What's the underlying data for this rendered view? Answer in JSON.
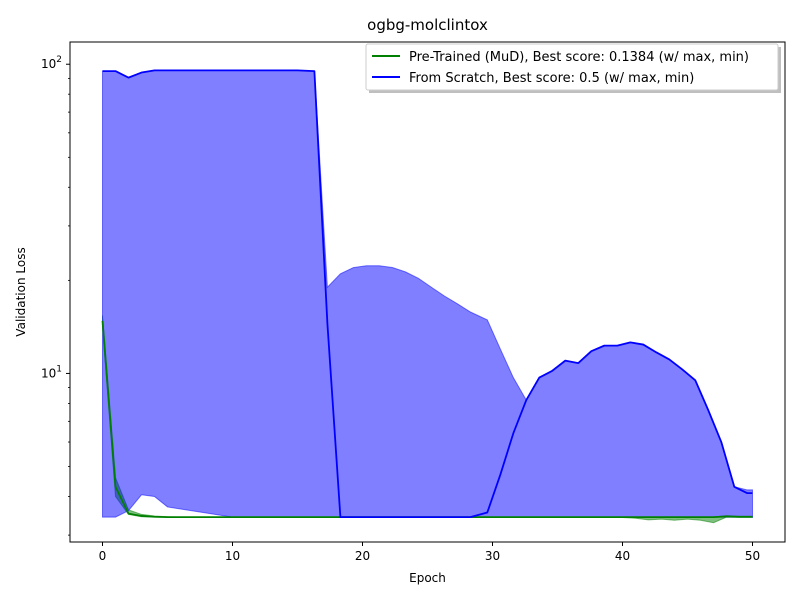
{
  "chart_data": {
    "type": "line",
    "title": "ogbg-molclintox",
    "xlabel": "Epoch",
    "ylabel": "Validation Loss",
    "yscale": "log",
    "xlim": [
      -2.5,
      52.5
    ],
    "ylim": [
      2.85,
      118
    ],
    "x_ticks": [
      0,
      10,
      20,
      30,
      40,
      50
    ],
    "x_tick_labels": [
      "0",
      "10",
      "20",
      "30",
      "40",
      "50"
    ],
    "y_major_ticks": [
      10,
      100
    ],
    "y_major_tick_labels": [
      "10^1",
      "10^2"
    ],
    "y_minor_ticks": [
      3,
      4,
      5,
      6,
      7,
      8,
      9,
      20,
      30,
      40,
      50,
      60,
      70,
      80,
      90
    ],
    "grid": false,
    "legend_position": "top-right",
    "series": [
      {
        "name": "Pre-Trained (MuD), Best score: 0.1384 (w/ max, min)",
        "color": "#008000",
        "fill_color": "#008000",
        "x": [
          0,
          1,
          2,
          3,
          4,
          5,
          6,
          8,
          10,
          15,
          20,
          25,
          30,
          35,
          39,
          40,
          41,
          42,
          43,
          44,
          45,
          46,
          47,
          48,
          49,
          50
        ],
        "mean": [
          14.8,
          4.3,
          3.52,
          3.46,
          3.44,
          3.43,
          3.43,
          3.43,
          3.43,
          3.43,
          3.43,
          3.43,
          3.43,
          3.43,
          3.43,
          3.43,
          3.43,
          3.43,
          3.43,
          3.43,
          3.43,
          3.43,
          3.43,
          3.45,
          3.44,
          3.44
        ],
        "max": [
          15.4,
          4.6,
          3.62,
          3.5,
          3.46,
          3.44,
          3.43,
          3.43,
          3.43,
          3.43,
          3.43,
          3.43,
          3.43,
          3.43,
          3.43,
          3.43,
          3.43,
          3.43,
          3.43,
          3.43,
          3.43,
          3.43,
          3.43,
          3.47,
          3.45,
          3.45
        ],
        "min": [
          14.2,
          4.0,
          3.5,
          3.44,
          3.43,
          3.43,
          3.43,
          3.43,
          3.43,
          3.43,
          3.43,
          3.43,
          3.43,
          3.43,
          3.43,
          3.42,
          3.4,
          3.36,
          3.38,
          3.35,
          3.38,
          3.35,
          3.29,
          3.43,
          3.42,
          3.42
        ]
      },
      {
        "name": "From Scratch, Best score: 0.5 (w/ max, min)",
        "color": "#0000ff",
        "fill_color": "#0000ff",
        "x": [
          0,
          1,
          2,
          3,
          4,
          5,
          10,
          15,
          16.3,
          17.3,
          18.3,
          19.3,
          20.3,
          21.3,
          22.3,
          23.3,
          24.3,
          25.3,
          26.3,
          27.3,
          28.3,
          29.6,
          30.6,
          31.6,
          32.6,
          33.6,
          34.6,
          35.6,
          36.6,
          37.6,
          38.6,
          39.6,
          40.6,
          41.6,
          42.6,
          43.6,
          44.6,
          45.6,
          46.6,
          47.6,
          48.6,
          49.6,
          50
        ],
        "mean": [
          95,
          95,
          90.5,
          94,
          95.5,
          95.5,
          95.5,
          95.5,
          95,
          14.5,
          3.43,
          3.43,
          3.43,
          3.43,
          3.43,
          3.43,
          3.43,
          3.43,
          3.43,
          3.43,
          3.43,
          3.55,
          4.7,
          6.4,
          8.2,
          9.7,
          10.2,
          11,
          10.8,
          11.8,
          12.3,
          12.3,
          12.6,
          12.4,
          11.7,
          11.1,
          10.3,
          9.5,
          7.6,
          6,
          4.3,
          4.1,
          4.1
        ],
        "max": [
          95,
          95,
          90.5,
          94,
          95.5,
          95.5,
          95.5,
          95.5,
          95,
          19,
          21,
          22,
          22.3,
          22.3,
          22,
          21.3,
          20.3,
          19,
          17.8,
          16.8,
          15.8,
          14.9,
          12,
          9.7,
          8.2,
          9.7,
          10.2,
          11,
          10.8,
          11.8,
          12.3,
          12.3,
          12.6,
          12.4,
          11.7,
          11.1,
          10.3,
          9.5,
          7.6,
          6,
          4.3,
          4.2,
          4.2
        ],
        "min": [
          3.43,
          3.43,
          3.6,
          4.05,
          4.0,
          3.7,
          3.43,
          3.43,
          3.43,
          3.43,
          3.43,
          3.43,
          3.43,
          3.43,
          3.43,
          3.43,
          3.43,
          3.43,
          3.43,
          3.43,
          3.43,
          3.43,
          3.43,
          3.43,
          3.43,
          3.43,
          3.43,
          3.43,
          3.43,
          3.43,
          3.43,
          3.43,
          3.43,
          3.43,
          3.43,
          3.43,
          3.43,
          3.43,
          3.43,
          3.43,
          3.43,
          3.43,
          3.43
        ]
      }
    ]
  }
}
